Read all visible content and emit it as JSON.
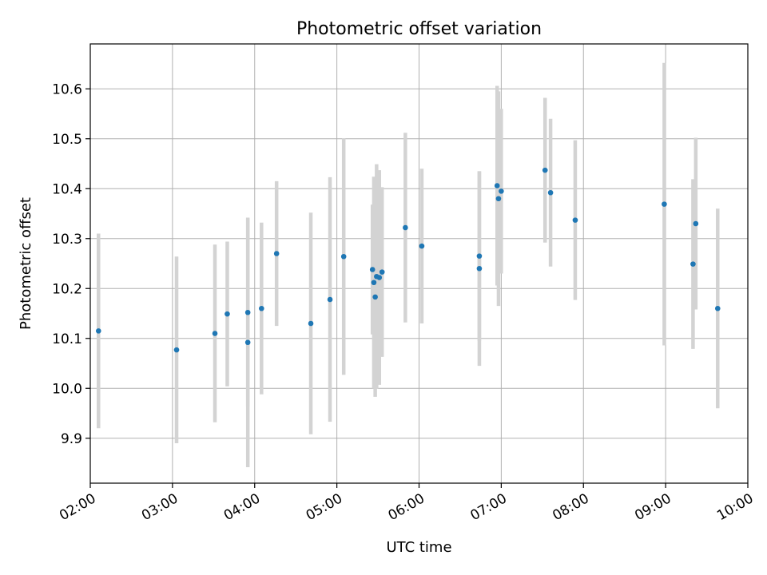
{
  "chart_data": {
    "type": "scatter",
    "title": "Photometric offset variation",
    "xlabel": "UTC time",
    "ylabel": "Photometric offset",
    "xlim": [
      "02:00",
      "10:00"
    ],
    "ylim": [
      9.81,
      10.69
    ],
    "grid": true,
    "x_ticks": [
      "02:00",
      "03:00",
      "04:00",
      "05:00",
      "06:00",
      "07:00",
      "08:00",
      "09:00",
      "10:00"
    ],
    "y_ticks": [
      "9.9",
      "10.0",
      "10.1",
      "10.2",
      "10.3",
      "10.4",
      "10.5",
      "10.6"
    ],
    "colors": {
      "marker": "#1f77b4",
      "errorbar": "#d3d3d3",
      "grid": "#b0b0b0"
    },
    "series": [
      {
        "points": [
          {
            "x": "02:06",
            "y": 10.115,
            "err": 0.195
          },
          {
            "x": "03:03",
            "y": 10.077,
            "err": 0.187
          },
          {
            "x": "03:31",
            "y": 10.11,
            "err": 0.178
          },
          {
            "x": "03:40",
            "y": 10.149,
            "err": 0.145
          },
          {
            "x": "03:55",
            "y": 10.152,
            "err": 0.188
          },
          {
            "x": "03:55",
            "y": 10.092,
            "err": 0.25
          },
          {
            "x": "04:05",
            "y": 10.16,
            "err": 0.172
          },
          {
            "x": "04:16",
            "y": 10.27,
            "err": 0.145
          },
          {
            "x": "04:41",
            "y": 10.13,
            "err": 0.222
          },
          {
            "x": "04:55",
            "y": 10.178,
            "err": 0.245
          },
          {
            "x": "05:05",
            "y": 10.264,
            "err": 0.237
          },
          {
            "x": "05:26",
            "y": 10.238,
            "err": 0.13
          },
          {
            "x": "05:27",
            "y": 10.212,
            "err": 0.212
          },
          {
            "x": "05:28",
            "y": 10.183,
            "err": 0.2
          },
          {
            "x": "05:29",
            "y": 10.224,
            "err": 0.225
          },
          {
            "x": "05:31",
            "y": 10.222,
            "err": 0.215
          },
          {
            "x": "05:33",
            "y": 10.233,
            "err": 0.17
          },
          {
            "x": "05:50",
            "y": 10.322,
            "err": 0.19
          },
          {
            "x": "06:02",
            "y": 10.285,
            "err": 0.155
          },
          {
            "x": "06:44",
            "y": 10.265,
            "err": 0.17
          },
          {
            "x": "06:44",
            "y": 10.24,
            "err": 0.195
          },
          {
            "x": "06:57",
            "y": 10.406,
            "err": 0.2
          },
          {
            "x": "06:58",
            "y": 10.38,
            "err": 0.215
          },
          {
            "x": "07:00",
            "y": 10.395,
            "err": 0.165
          },
          {
            "x": "07:32",
            "y": 10.437,
            "err": 0.145
          },
          {
            "x": "07:36",
            "y": 10.392,
            "err": 0.148
          },
          {
            "x": "07:54",
            "y": 10.337,
            "err": 0.16
          },
          {
            "x": "08:59",
            "y": 10.369,
            "err": 0.283
          },
          {
            "x": "09:20",
            "y": 10.249,
            "err": 0.17
          },
          {
            "x": "09:22",
            "y": 10.33,
            "err": 0.172
          },
          {
            "x": "09:38",
            "y": 10.16,
            "err": 0.2
          }
        ]
      }
    ]
  }
}
